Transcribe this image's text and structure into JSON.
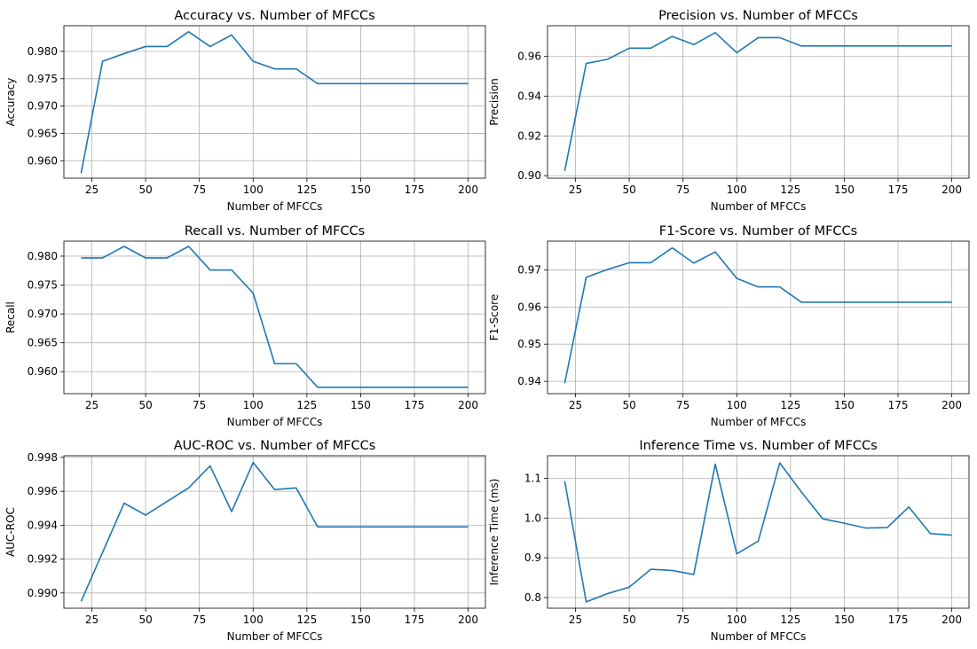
{
  "chart_data": [
    {
      "type": "line",
      "title": "Accuracy vs. Number of MFCCs",
      "xlabel": "Number of MFCCs",
      "ylabel": "Accuracy",
      "xlim": [
        12,
        208
      ],
      "ylim": [
        0.9568,
        0.9847
      ],
      "xticks": [
        25,
        50,
        75,
        100,
        125,
        150,
        175,
        200
      ],
      "yticks": [
        0.96,
        0.965,
        0.97,
        0.975,
        0.98
      ],
      "ytick_labels": [
        "0.960",
        "0.965",
        "0.970",
        "0.975",
        "0.980"
      ],
      "grid": true,
      "color": "#1f77b4",
      "x": [
        20,
        30,
        40,
        50,
        60,
        70,
        80,
        90,
        100,
        110,
        120,
        130,
        140,
        150,
        160,
        170,
        180,
        190,
        200
      ],
      "y": [
        0.9577,
        0.9782,
        0.9796,
        0.9809,
        0.9809,
        0.9836,
        0.9809,
        0.983,
        0.9782,
        0.9768,
        0.9768,
        0.9741,
        0.9741,
        0.9741,
        0.9741,
        0.9741,
        0.9741,
        0.9741,
        0.9741
      ]
    },
    {
      "type": "line",
      "title": "Precision vs. Number of MFCCs",
      "xlabel": "Number of MFCCs",
      "ylabel": "Precision",
      "xlim": [
        12,
        208
      ],
      "ylim": [
        0.8987,
        0.9755
      ],
      "xticks": [
        25,
        50,
        75,
        100,
        125,
        150,
        175,
        200
      ],
      "yticks": [
        0.9,
        0.92,
        0.94,
        0.96
      ],
      "ytick_labels": [
        "0.90",
        "0.92",
        "0.94",
        "0.96"
      ],
      "grid": true,
      "color": "#1f77b4",
      "x": [
        20,
        30,
        40,
        50,
        60,
        70,
        80,
        90,
        100,
        110,
        120,
        130,
        140,
        150,
        160,
        170,
        180,
        190,
        200
      ],
      "y": [
        0.9024,
        0.9565,
        0.9586,
        0.9642,
        0.9642,
        0.9701,
        0.966,
        0.972,
        0.9619,
        0.9695,
        0.9695,
        0.9653,
        0.9653,
        0.9653,
        0.9653,
        0.9653,
        0.9653,
        0.9653,
        0.9653
      ]
    },
    {
      "type": "line",
      "title": "Recall vs. Number of MFCCs",
      "xlabel": "Number of MFCCs",
      "ylabel": "Recall",
      "xlim": [
        12,
        208
      ],
      "ylim": [
        0.9562,
        0.9826
      ],
      "xticks": [
        25,
        50,
        75,
        100,
        125,
        150,
        175,
        200
      ],
      "yticks": [
        0.96,
        0.965,
        0.97,
        0.975,
        0.98
      ],
      "ytick_labels": [
        "0.960",
        "0.965",
        "0.970",
        "0.975",
        "0.980"
      ],
      "grid": true,
      "color": "#1f77b4",
      "x": [
        20,
        30,
        40,
        50,
        60,
        70,
        80,
        90,
        100,
        110,
        120,
        130,
        140,
        150,
        160,
        170,
        180,
        190,
        200
      ],
      "y": [
        0.9797,
        0.9797,
        0.9817,
        0.9797,
        0.9797,
        0.9817,
        0.9776,
        0.9776,
        0.9736,
        0.9614,
        0.9614,
        0.9573,
        0.9573,
        0.9573,
        0.9573,
        0.9573,
        0.9573,
        0.9573,
        0.9573
      ]
    },
    {
      "type": "line",
      "title": "F1-Score vs. Number of MFCCs",
      "xlabel": "Number of MFCCs",
      "ylabel": "F1-Score",
      "xlim": [
        12,
        208
      ],
      "ylim": [
        0.9367,
        0.9777
      ],
      "xticks": [
        25,
        50,
        75,
        100,
        125,
        150,
        175,
        200
      ],
      "yticks": [
        0.94,
        0.95,
        0.96,
        0.97
      ],
      "ytick_labels": [
        "0.94",
        "0.95",
        "0.96",
        "0.97"
      ],
      "grid": true,
      "color": "#1f77b4",
      "x": [
        20,
        30,
        40,
        50,
        60,
        70,
        80,
        90,
        100,
        110,
        120,
        130,
        140,
        150,
        160,
        170,
        180,
        190,
        200
      ],
      "y": [
        0.9395,
        0.968,
        0.9701,
        0.9719,
        0.9719,
        0.9759,
        0.9718,
        0.9748,
        0.9677,
        0.9654,
        0.9654,
        0.9613,
        0.9613,
        0.9613,
        0.9613,
        0.9613,
        0.9613,
        0.9613,
        0.9613
      ]
    },
    {
      "type": "line",
      "title": "AUC-ROC vs. Number of MFCCs",
      "xlabel": "Number of MFCCs",
      "ylabel": "AUC-ROC",
      "xlim": [
        12,
        208
      ],
      "ylim": [
        0.9891,
        0.9981
      ],
      "xticks": [
        25,
        50,
        75,
        100,
        125,
        150,
        175,
        200
      ],
      "yticks": [
        0.99,
        0.992,
        0.994,
        0.996,
        0.998
      ],
      "ytick_labels": [
        "0.990",
        "0.992",
        "0.994",
        "0.996",
        "0.998"
      ],
      "grid": true,
      "color": "#1f77b4",
      "x": [
        20,
        30,
        40,
        50,
        60,
        70,
        80,
        90,
        100,
        110,
        120,
        130,
        140,
        150,
        160,
        170,
        180,
        190,
        200
      ],
      "y": [
        0.9895,
        0.9924,
        0.9953,
        0.9946,
        0.9954,
        0.9962,
        0.9975,
        0.9948,
        0.9977,
        0.9961,
        0.9962,
        0.9939,
        0.9939,
        0.9939,
        0.9939,
        0.9939,
        0.9939,
        0.9939,
        0.9939
      ]
    },
    {
      "type": "line",
      "title": "Inference Time vs. Number of MFCCs",
      "xlabel": "Number of MFCCs",
      "ylabel": "Inference Time (ms)",
      "xlim": [
        12,
        208
      ],
      "ylim": [
        0.773,
        1.157
      ],
      "xticks": [
        25,
        50,
        75,
        100,
        125,
        150,
        175,
        200
      ],
      "yticks": [
        0.8,
        0.9,
        1.0,
        1.1
      ],
      "ytick_labels": [
        "0.8",
        "0.9",
        "1.0",
        "1.1"
      ],
      "grid": true,
      "color": "#1f77b4",
      "x": [
        20,
        30,
        40,
        50,
        60,
        70,
        80,
        90,
        100,
        110,
        120,
        130,
        140,
        150,
        160,
        170,
        180,
        190,
        200
      ],
      "y": [
        1.093,
        0.789,
        0.81,
        0.826,
        0.871,
        0.868,
        0.858,
        1.136,
        0.91,
        0.942,
        1.139,
        1.066,
        0.998,
        0.987,
        0.975,
        0.976,
        1.028,
        0.961,
        0.957
      ]
    }
  ]
}
